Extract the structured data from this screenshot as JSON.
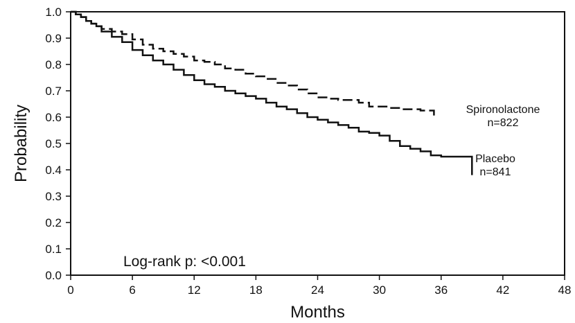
{
  "chart_data": {
    "type": "line",
    "title": "",
    "xlabel": "Months",
    "ylabel": "Probability",
    "xlim": [
      0,
      48
    ],
    "ylim": [
      0,
      1
    ],
    "x_ticks": [
      "0",
      "6",
      "12",
      "18",
      "24",
      "30",
      "36",
      "42",
      "48"
    ],
    "y_ticks": [
      "0.0",
      "0.1",
      "0.2",
      "0.3",
      "0.4",
      "0.5",
      "0.6",
      "0.7",
      "0.8",
      "0.9",
      "1.0"
    ],
    "grid": false,
    "annotation": "Log-rank p: <0.001",
    "series": [
      {
        "name": "Spironolactone",
        "label_line2": "n=822",
        "style": "dashed",
        "x": [
          0,
          0.5,
          1,
          1.5,
          2,
          2.5,
          3,
          4,
          5,
          6,
          7,
          8,
          9,
          10,
          11,
          12,
          13,
          14,
          15,
          16,
          17,
          18,
          19,
          20,
          21,
          22,
          23,
          24,
          25,
          26,
          27,
          28,
          29,
          30,
          31,
          32,
          33,
          34,
          35.3
        ],
        "y": [
          1.0,
          0.99,
          0.98,
          0.965,
          0.955,
          0.945,
          0.935,
          0.925,
          0.915,
          0.895,
          0.875,
          0.86,
          0.85,
          0.84,
          0.83,
          0.815,
          0.81,
          0.8,
          0.785,
          0.78,
          0.765,
          0.755,
          0.745,
          0.73,
          0.72,
          0.705,
          0.69,
          0.675,
          0.67,
          0.665,
          0.665,
          0.655,
          0.64,
          0.64,
          0.635,
          0.63,
          0.63,
          0.625,
          0.605
        ]
      },
      {
        "name": "Placebo",
        "label_line2": "n=841",
        "style": "solid",
        "x": [
          0,
          0.5,
          1,
          1.5,
          2,
          2.5,
          3,
          4,
          5,
          6,
          7,
          8,
          9,
          10,
          11,
          12,
          13,
          14,
          15,
          16,
          17,
          18,
          19,
          20,
          21,
          22,
          23,
          24,
          25,
          26,
          27,
          28,
          29,
          30,
          31,
          32,
          33,
          34,
          35,
          36,
          37,
          38,
          39,
          39
        ],
        "y": [
          1.0,
          0.99,
          0.98,
          0.965,
          0.955,
          0.945,
          0.925,
          0.905,
          0.885,
          0.855,
          0.835,
          0.815,
          0.8,
          0.78,
          0.76,
          0.74,
          0.725,
          0.715,
          0.7,
          0.69,
          0.68,
          0.67,
          0.655,
          0.64,
          0.63,
          0.615,
          0.6,
          0.59,
          0.58,
          0.57,
          0.56,
          0.545,
          0.54,
          0.53,
          0.51,
          0.49,
          0.48,
          0.47,
          0.455,
          0.45,
          0.45,
          0.45,
          0.45,
          0.38
        ]
      }
    ]
  }
}
